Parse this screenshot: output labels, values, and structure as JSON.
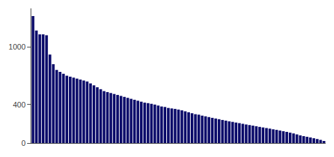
{
  "chart_data": {
    "type": "bar",
    "categories": [
      null,
      null,
      null,
      null,
      null,
      null,
      null,
      null,
      null,
      null,
      null,
      null,
      null,
      null,
      null,
      null,
      null,
      null,
      null,
      null,
      null,
      null,
      null,
      null,
      null,
      null,
      null,
      null,
      null,
      null,
      null,
      null,
      null,
      null,
      null,
      null,
      null,
      null,
      null,
      null,
      null,
      null,
      null,
      null,
      null,
      null,
      null,
      null,
      null,
      null,
      null,
      null,
      null,
      null,
      null,
      null,
      null,
      null,
      null,
      null,
      null,
      null,
      null,
      null,
      null,
      null,
      null,
      null,
      null,
      null,
      null,
      null,
      null,
      null,
      null,
      null,
      null,
      null,
      null,
      null,
      null,
      null,
      null,
      null,
      null,
      null,
      null
    ],
    "values": [
      1320,
      1170,
      1130,
      1130,
      1120,
      920,
      820,
      760,
      740,
      720,
      700,
      690,
      680,
      670,
      660,
      650,
      640,
      620,
      600,
      580,
      560,
      540,
      530,
      520,
      510,
      500,
      490,
      480,
      470,
      460,
      450,
      440,
      430,
      420,
      415,
      408,
      400,
      390,
      380,
      375,
      365,
      360,
      355,
      348,
      340,
      330,
      320,
      310,
      300,
      295,
      285,
      278,
      270,
      262,
      255,
      248,
      240,
      233,
      226,
      220,
      213,
      207,
      200,
      193,
      187,
      181,
      175,
      168,
      162,
      156,
      150,
      143,
      137,
      130,
      123,
      116,
      108,
      100,
      90,
      80,
      72,
      65,
      58,
      50,
      42,
      33,
      22
    ],
    "color": "#0d0d6b",
    "ylim": [
      0,
      1400
    ],
    "yticks": [
      0,
      400,
      1000
    ],
    "grid": false,
    "tick_labels": "y"
  }
}
